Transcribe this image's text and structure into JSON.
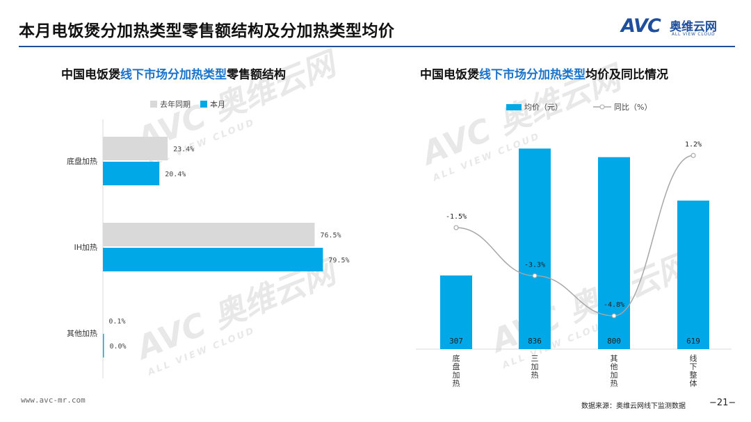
{
  "header": {
    "title": "本月电饭煲分加热类型零售额结构及分加热类型均价",
    "logo_mark": "AVC",
    "logo_cn": "奥维云网",
    "logo_en": "ALL VIEW CLOUD"
  },
  "watermark": {
    "mark": "AVC 奥维云网",
    "sub": "ALL VIEW CLOUD"
  },
  "left_panel": {
    "title_prefix": "中国电饭煲",
    "title_highlight": "线下市场分加热类型",
    "title_suffix": "零售额结构",
    "legend": [
      "去年同期",
      "本月"
    ]
  },
  "right_panel": {
    "title_prefix": "中国电饭煲",
    "title_highlight": "线下市场分加热类型",
    "title_suffix": "均价及同比情况",
    "legend": [
      "均价（元）",
      "同比（%）"
    ]
  },
  "colors": {
    "accent": "#00a8e8",
    "last_year": "#d9d9d9",
    "line": "#a6a6a6",
    "title_blue": "#1f4e9c",
    "highlight": "#1a73c9"
  },
  "chart_data": [
    {
      "type": "bar",
      "orientation": "horizontal",
      "title": "中国电饭煲线下市场分加热类型零售额结构",
      "categories": [
        "底盘加热",
        "IH加热",
        "其他加热"
      ],
      "series": [
        {
          "name": "去年同期",
          "values": [
            23.4,
            76.5,
            0.1
          ],
          "labels": [
            "23.4%",
            "76.5%",
            "0.1%"
          ],
          "color": "#d9d9d9"
        },
        {
          "name": "本月",
          "values": [
            20.4,
            79.5,
            0.0
          ],
          "labels": [
            "20.4%",
            "79.5%",
            "0.0%"
          ],
          "color": "#00a8e8"
        }
      ],
      "xlim": [
        0,
        100
      ],
      "legend": "top"
    },
    {
      "type": "bar+line",
      "title": "中国电饭煲线下市场分加热类型均价及同比情况",
      "categories": [
        "底盘加热",
        "三加热",
        "其他加热",
        "线下整体"
      ],
      "series": [
        {
          "name": "均价（元）",
          "type": "bar",
          "values": [
            307,
            836,
            800,
            619
          ],
          "labels": [
            "307",
            "836",
            "800",
            "619"
          ],
          "color": "#00a8e8"
        },
        {
          "name": "同比（%）",
          "type": "line",
          "values": [
            -1.5,
            -3.3,
            -4.8,
            1.2
          ],
          "labels": [
            "-1.5%",
            "-3.3%",
            "-4.8%",
            "1.2%"
          ],
          "color": "#a6a6a6"
        }
      ],
      "ylim_bar": [
        0,
        900
      ],
      "ylim_line": [
        -5.5,
        1.8
      ],
      "legend": "top"
    }
  ],
  "footer": {
    "url": "www.avc-mr.com",
    "source": "数据来源：奥维云网线下监测数据",
    "page": "−21−"
  }
}
